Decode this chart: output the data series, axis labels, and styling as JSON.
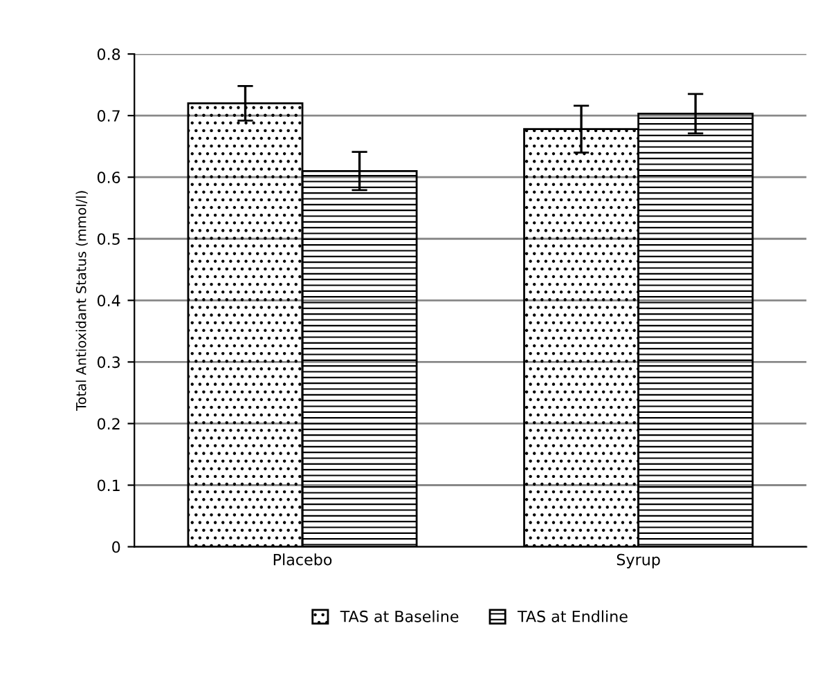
{
  "chart_data": {
    "type": "bar",
    "ylabel": "Total Antioxidant Status (mmol/l)",
    "categories": [
      "Placebo",
      "Syrup"
    ],
    "series": [
      {
        "name": "TAS at Baseline",
        "color": "#000000",
        "values": [
          0.72,
          0.678
        ],
        "errors": [
          0.028,
          0.038
        ]
      },
      {
        "name": "TAS at Endline",
        "color": "#000000",
        "values": [
          0.61,
          0.703
        ],
        "errors": [
          0.031,
          0.032
        ]
      }
    ],
    "ylim": [
      0,
      0.8
    ],
    "yticks": [
      0,
      0.1,
      0.2,
      0.3,
      0.4,
      0.5,
      0.6,
      0.7,
      0.8
    ],
    "grid": "y",
    "legend": "bottom"
  }
}
